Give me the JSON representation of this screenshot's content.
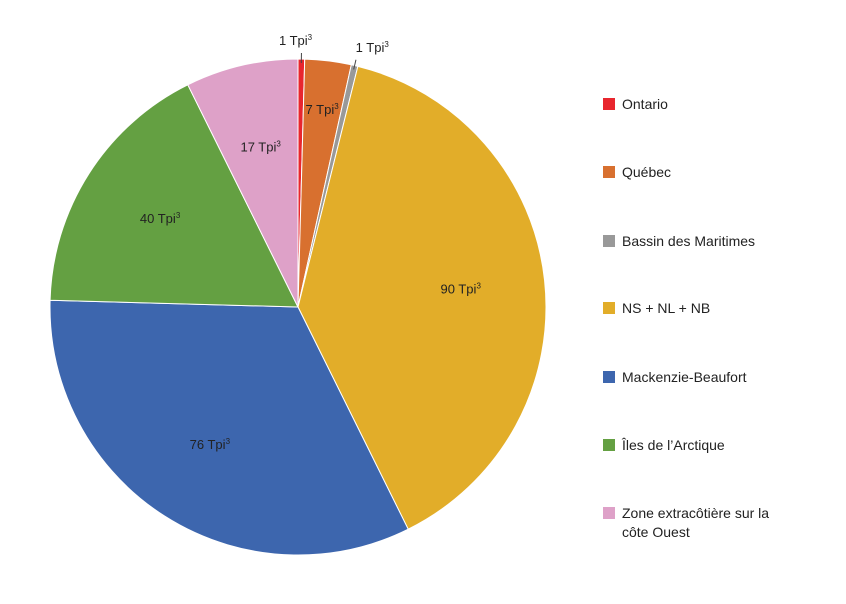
{
  "chart_data": {
    "type": "pie",
    "title": "",
    "unit": "Tpi³",
    "legend_position": "right",
    "slices": [
      {
        "name": "Ontario",
        "value": 1,
        "label": "1 Tpi",
        "color": "#e8262e"
      },
      {
        "name": "Québec",
        "value": 7,
        "label": "7 Tpi",
        "color": "#d8702f"
      },
      {
        "name": "Bassin des Maritimes",
        "value": 1,
        "label": "1 Tpi",
        "color": "#999999"
      },
      {
        "name": "NS + NL + NB",
        "value": 90,
        "label": "90 Tpi",
        "color": "#e2ad29"
      },
      {
        "name": "Mackenzie-Beaufort",
        "value": 76,
        "label": "76 Tpi",
        "color": "#3d66ae"
      },
      {
        "name": "Îles de l’Arctique",
        "value": 40,
        "label": "40 Tpi",
        "color": "#64a042"
      },
      {
        "name": "Zone extracôtière sur la côte Ouest",
        "value": 17,
        "label": "17 Tpi",
        "color": "#dea1c8"
      }
    ],
    "label_superscript": "3"
  }
}
